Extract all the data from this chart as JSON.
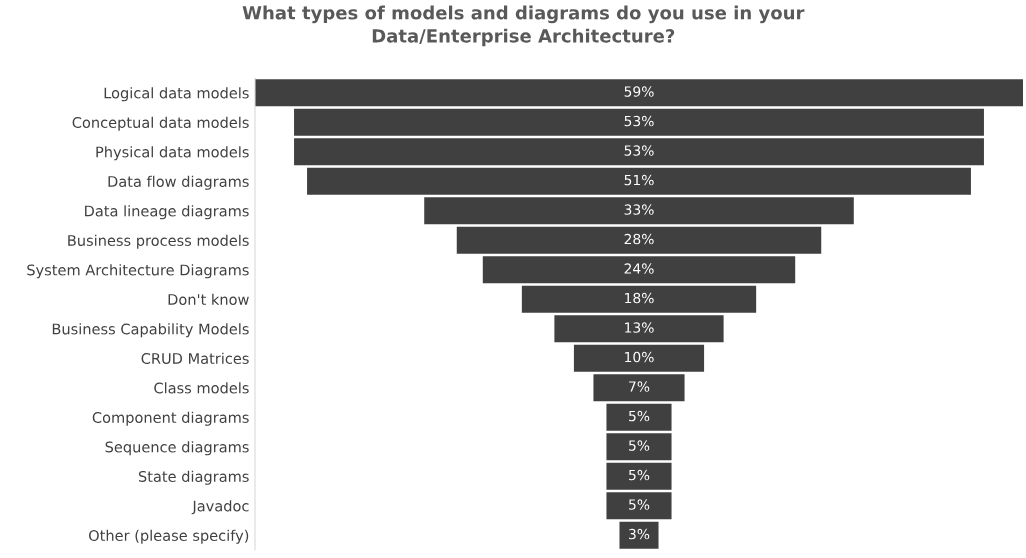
{
  "chart_data": {
    "type": "other",
    "title": "What types of models and diagrams do you use in your\nData/Enterprise Architecture?",
    "categories": [
      "Logical data models",
      "Conceptual data models",
      "Physical data models",
      "Data flow diagrams",
      "Data lineage diagrams",
      "Business process models",
      "System Architecture Diagrams",
      "Don't know",
      "Business Capability Models",
      "CRUD Matrices",
      "Class models",
      "Component diagrams",
      "Sequence diagrams",
      "State diagrams",
      "Javadoc",
      "Other (please specify)"
    ],
    "values": [
      59,
      53,
      53,
      51,
      33,
      28,
      24,
      18,
      13,
      10,
      7,
      5,
      5,
      5,
      5,
      3
    ],
    "value_labels": [
      "59%",
      "53%",
      "53%",
      "51%",
      "33%",
      "28%",
      "24%",
      "18%",
      "13%",
      "10%",
      "7%",
      "5%",
      "5%",
      "5%",
      "5%",
      "3%"
    ],
    "color": "#404040"
  }
}
